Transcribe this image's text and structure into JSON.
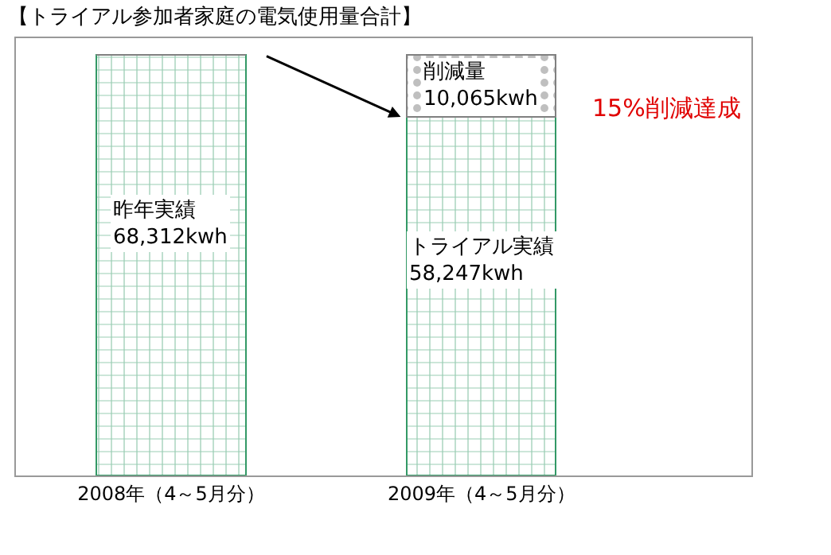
{
  "chart_data": {
    "type": "bar",
    "stacked": true,
    "title": "【トライアル参加者家庭の電気使用量合計】",
    "categories": [
      "2008年（4～5月分）",
      "2009年（4～5月分）"
    ],
    "series": [
      {
        "color": "#339966",
        "values": [
          68312,
          58247
        ],
        "value_labels": [
          "昨年実績\n68,312kwh",
          "トライアル実績\n58,247kwh"
        ]
      },
      {
        "color": "#808080",
        "values": [
          null,
          10065
        ],
        "value_labels": [
          null,
          "削減量\n10,065kwh"
        ]
      }
    ],
    "annotations": [
      "15%削減達成"
    ]
  }
}
